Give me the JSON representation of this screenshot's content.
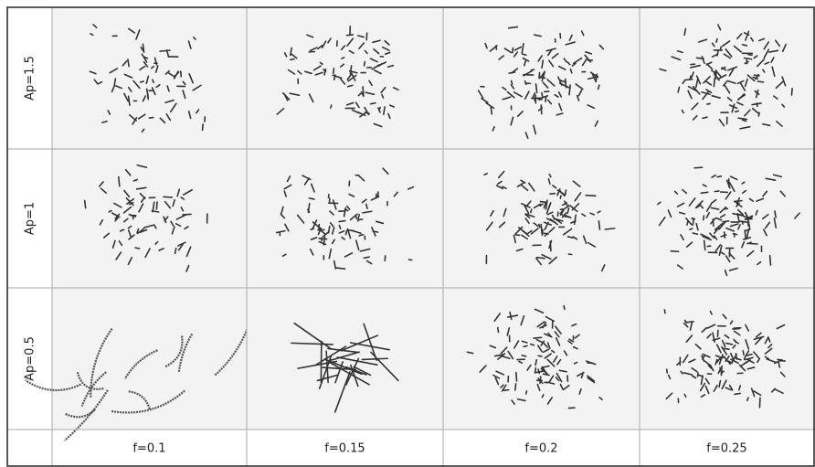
{
  "grid": {
    "row_labels": [
      "Ap=1.5",
      "Ap=1",
      "Ap=0.5"
    ],
    "column_labels": [
      "f=0.1",
      "f=0.15",
      "f=0.2",
      "f=0.25"
    ]
  }
}
